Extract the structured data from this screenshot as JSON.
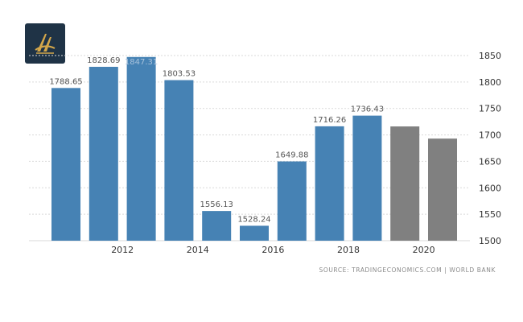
{
  "colors": {
    "actual": "#4682b4",
    "forecast": "#808080",
    "grid": "#d9d9d9",
    "axis_text": "#333333",
    "label_text": "#555555",
    "logo_bg": "#1f3346",
    "logo_gold": "#d4a74a"
  },
  "logo": {
    "icon": "trading-economics-logo-icon"
  },
  "source": "SOURCE: TRADINGECONOMICS.COM | WORLD BANK",
  "chart_data": {
    "type": "bar",
    "title": "",
    "xlabel": "",
    "ylabel": "",
    "y_axis_position": "right",
    "ylim": [
      1500,
      1850
    ],
    "yticks": [
      1500,
      1550,
      1600,
      1650,
      1700,
      1750,
      1800,
      1850
    ],
    "x_tick_labels": [
      "2012",
      "2014",
      "2016",
      "2018",
      "2020"
    ],
    "grid": "horizontal dashed",
    "legend": "none",
    "bars": [
      {
        "category": "2011",
        "value": 1788.65,
        "label": "1788.65",
        "kind": "actual"
      },
      {
        "category": "2012",
        "value": 1828.69,
        "label": "1828.69",
        "kind": "actual"
      },
      {
        "category": "2013",
        "value": 1847.31,
        "label": "1847.31",
        "kind": "actual"
      },
      {
        "category": "2014",
        "value": 1803.53,
        "label": "1803.53",
        "kind": "actual"
      },
      {
        "category": "2015",
        "value": 1556.13,
        "label": "1556.13",
        "kind": "actual"
      },
      {
        "category": "2016",
        "value": 1528.24,
        "label": "1528.24",
        "kind": "actual"
      },
      {
        "category": "2017",
        "value": 1649.88,
        "label": "1649.88",
        "kind": "actual"
      },
      {
        "category": "2018",
        "value": 1716.26,
        "label": "1716.26",
        "kind": "actual"
      },
      {
        "category": "2019",
        "value": 1736.43,
        "label": "1736.43",
        "kind": "actual"
      },
      {
        "category": "2020",
        "value": 1716,
        "label": "",
        "kind": "forecast"
      },
      {
        "category": "2021",
        "value": 1693,
        "label": "",
        "kind": "forecast"
      }
    ]
  }
}
